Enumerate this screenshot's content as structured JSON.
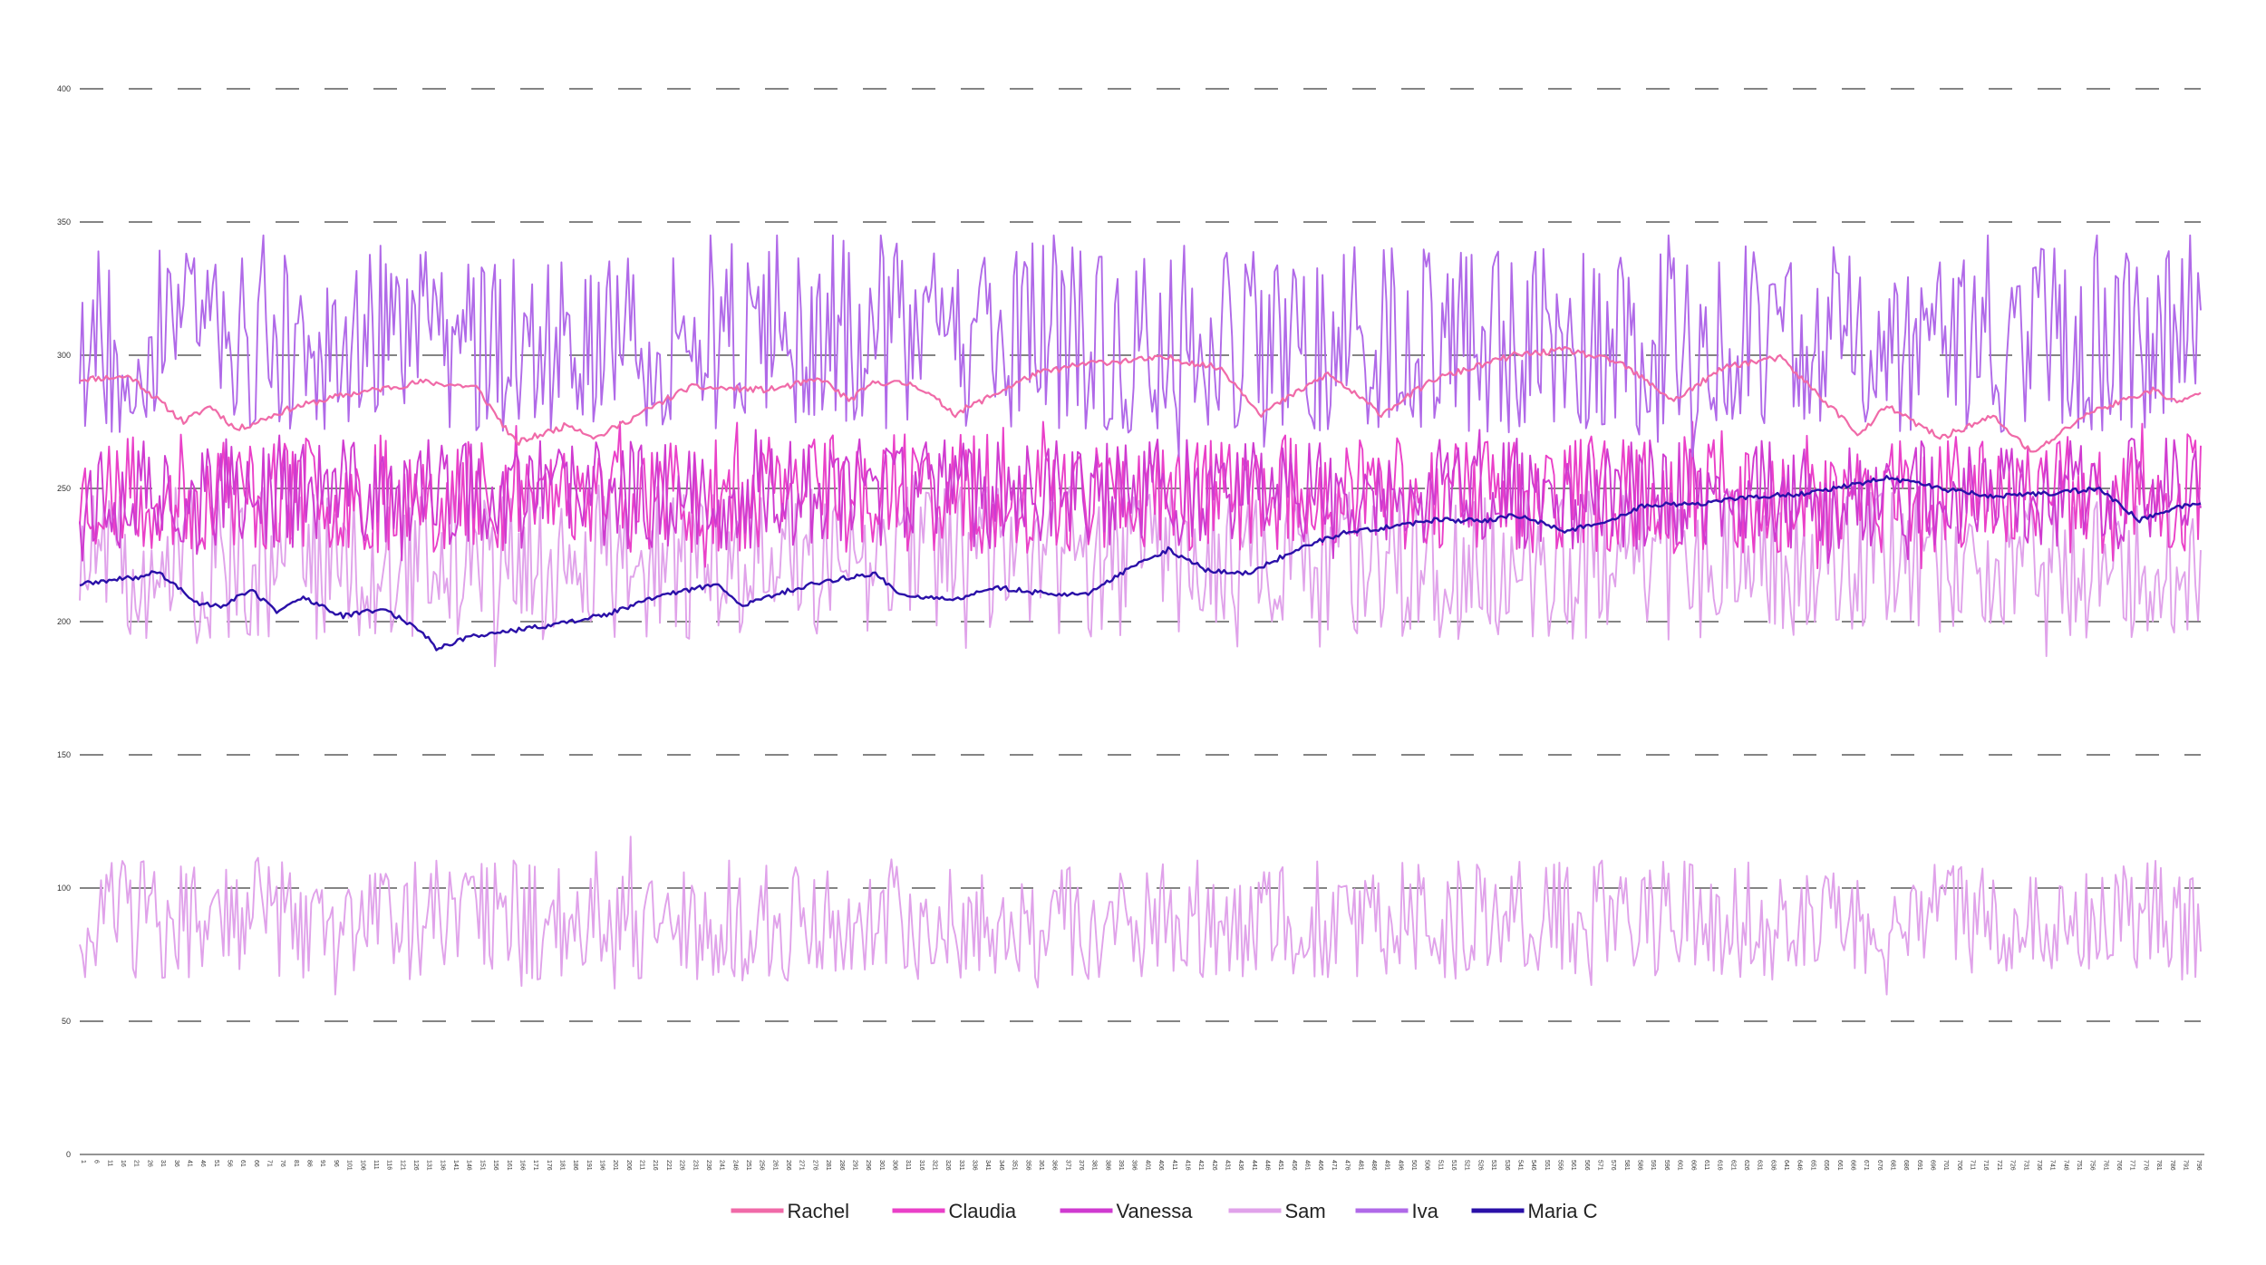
{
  "chart_data": {
    "type": "line",
    "title": "",
    "xlabel": "",
    "ylabel": "",
    "ylim": [
      0,
      400
    ],
    "yticks": [
      0,
      50,
      100,
      150,
      200,
      250,
      300,
      350,
      400
    ],
    "xlim": [
      1,
      798
    ],
    "xtick_start": 1,
    "xtick_step": 5,
    "xtick_end": 796,
    "grid": "horizontal dashed",
    "legend_position": "bottom",
    "series": [
      {
        "name": "Rachel",
        "color": "#f06aa8",
        "anchors": [
          [
            1,
            291
          ],
          [
            20,
            292
          ],
          [
            40,
            275
          ],
          [
            50,
            281
          ],
          [
            60,
            272
          ],
          [
            80,
            280
          ],
          [
            100,
            285
          ],
          [
            130,
            290
          ],
          [
            150,
            288
          ],
          [
            165,
            267
          ],
          [
            185,
            274
          ],
          [
            195,
            269
          ],
          [
            230,
            288
          ],
          [
            260,
            287
          ],
          [
            280,
            291
          ],
          [
            290,
            283
          ],
          [
            300,
            290
          ],
          [
            315,
            289
          ],
          [
            330,
            278
          ],
          [
            360,
            293
          ],
          [
            380,
            297
          ],
          [
            410,
            299
          ],
          [
            430,
            295
          ],
          [
            445,
            278
          ],
          [
            470,
            293
          ],
          [
            490,
            278
          ],
          [
            510,
            291
          ],
          [
            540,
            300
          ],
          [
            560,
            302
          ],
          [
            580,
            297
          ],
          [
            600,
            283
          ],
          [
            620,
            296
          ],
          [
            640,
            299
          ],
          [
            670,
            270
          ],
          [
            680,
            281
          ],
          [
            700,
            269
          ],
          [
            720,
            277
          ],
          [
            735,
            263
          ],
          [
            755,
            278
          ],
          [
            780,
            287
          ],
          [
            790,
            282
          ],
          [
            798,
            286
          ]
        ],
        "noise": 1.2
      },
      {
        "name": "Claudia",
        "color": "#ea40c8",
        "center": 248,
        "amp": 14,
        "min": 220,
        "max": 275
      },
      {
        "name": "Vanessa",
        "color": "#cf3ad0",
        "center": 248,
        "amp": 13,
        "min": 222,
        "max": 272
      },
      {
        "name": "Sam",
        "color": "#e0a2ea",
        "center": 222,
        "amp": 18,
        "min": 180,
        "max": 265,
        "lower_band": {
          "center": 88,
          "amp": 14,
          "min": 60,
          "max": 127
        }
      },
      {
        "name": "Iva",
        "color": "#b069e8",
        "center": 306,
        "amp": 22,
        "min": 262,
        "max": 345
      },
      {
        "name": "Maria C",
        "color": "#2a10a8",
        "anchors": [
          [
            1,
            214
          ],
          [
            25,
            217
          ],
          [
            30,
            219
          ],
          [
            45,
            207
          ],
          [
            55,
            206
          ],
          [
            65,
            212
          ],
          [
            75,
            204
          ],
          [
            85,
            209
          ],
          [
            100,
            202
          ],
          [
            115,
            205
          ],
          [
            130,
            196
          ],
          [
            135,
            190
          ],
          [
            150,
            195
          ],
          [
            160,
            196
          ],
          [
            180,
            199
          ],
          [
            200,
            203
          ],
          [
            220,
            210
          ],
          [
            240,
            214
          ],
          [
            250,
            206
          ],
          [
            265,
            211
          ],
          [
            280,
            215
          ],
          [
            300,
            218
          ],
          [
            310,
            210
          ],
          [
            330,
            208
          ],
          [
            345,
            213
          ],
          [
            360,
            211
          ],
          [
            380,
            210
          ],
          [
            395,
            220
          ],
          [
            410,
            227
          ],
          [
            425,
            219
          ],
          [
            440,
            218
          ],
          [
            460,
            228
          ],
          [
            475,
            233
          ],
          [
            490,
            235
          ],
          [
            510,
            238
          ],
          [
            530,
            238
          ],
          [
            540,
            240
          ],
          [
            560,
            234
          ],
          [
            575,
            238
          ],
          [
            590,
            244
          ],
          [
            610,
            244
          ],
          [
            630,
            247
          ],
          [
            650,
            248
          ],
          [
            680,
            254
          ],
          [
            700,
            250
          ],
          [
            720,
            247
          ],
          [
            740,
            248
          ],
          [
            760,
            250
          ],
          [
            775,
            238
          ],
          [
            790,
            243
          ],
          [
            798,
            245
          ]
        ],
        "noise": 0.9
      }
    ],
    "legend": [
      "Rachel",
      "Claudia",
      "Vanessa",
      "Sam",
      "Iva",
      "Maria C"
    ]
  }
}
